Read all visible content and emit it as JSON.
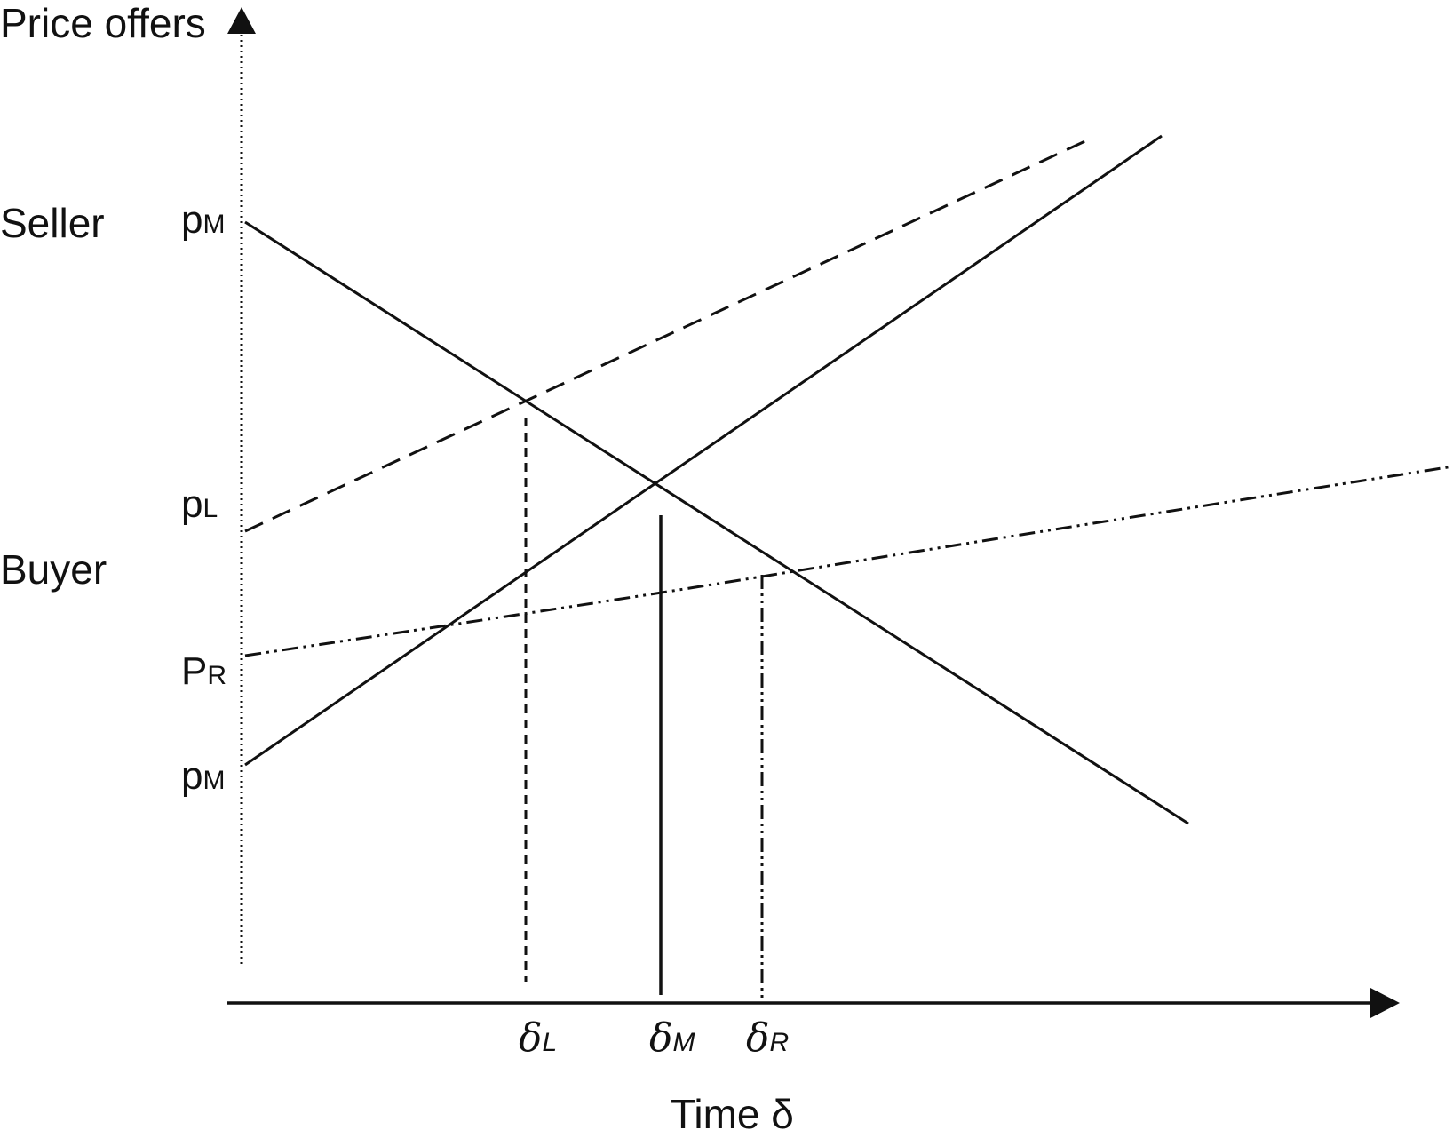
{
  "axes": {
    "y_label": "Price offers",
    "x_label": "Time δ"
  },
  "row_labels": {
    "seller": "Seller",
    "buyer": "Buyer"
  },
  "price_labels": {
    "seller_pm": {
      "main": "p",
      "sub": "M"
    },
    "buyer_pl": {
      "main": "p",
      "sub": "L"
    },
    "buyer_pr": {
      "main": "P",
      "sub": "R"
    },
    "buyer_pm": {
      "main": "p",
      "sub": "M"
    }
  },
  "time_labels": {
    "delta_l": {
      "main": "δ",
      "sub": "L"
    },
    "delta_m": {
      "main": "δ",
      "sub": "M"
    },
    "delta_r": {
      "main": "δ",
      "sub": "R"
    }
  },
  "line_styles": {
    "seller_offer": "solid",
    "buyer_m": "solid",
    "buyer_l": "dashed",
    "buyer_r": "dash-dot-dot"
  },
  "colors": {
    "ink": "#111111",
    "background": "#ffffff"
  }
}
